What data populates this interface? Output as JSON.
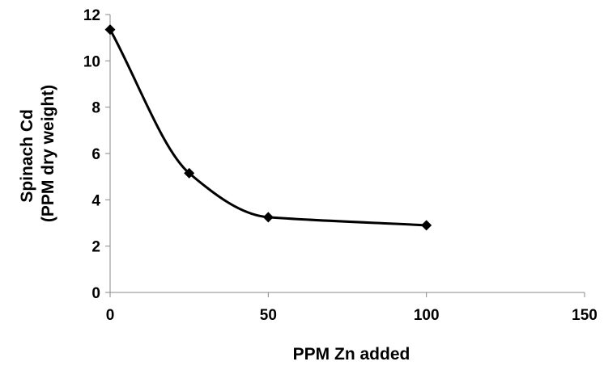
{
  "chart_data": {
    "type": "scatter",
    "mode": "smooth-line-with-markers",
    "xlabel": "PPM Zn added",
    "ylabel_lines": [
      "Spinach Cd",
      "(PPM dry weight)"
    ],
    "xlim": [
      0,
      150
    ],
    "ylim": [
      0,
      12
    ],
    "x_ticks": [
      0,
      50,
      100,
      150
    ],
    "y_ticks": [
      0,
      2,
      4,
      6,
      8,
      10,
      12
    ],
    "x_tick_labels": [
      "0",
      "50",
      "100",
      "150"
    ],
    "y_tick_labels": [
      "0",
      "2",
      "4",
      "6",
      "8",
      "10",
      "12"
    ],
    "grid": false,
    "legend": "none",
    "series": [
      {
        "x": [
          0,
          25,
          50,
          100
        ],
        "values": [
          11.35,
          5.15,
          3.25,
          2.9
        ],
        "color": "#000000",
        "marker": "diamond"
      }
    ]
  }
}
